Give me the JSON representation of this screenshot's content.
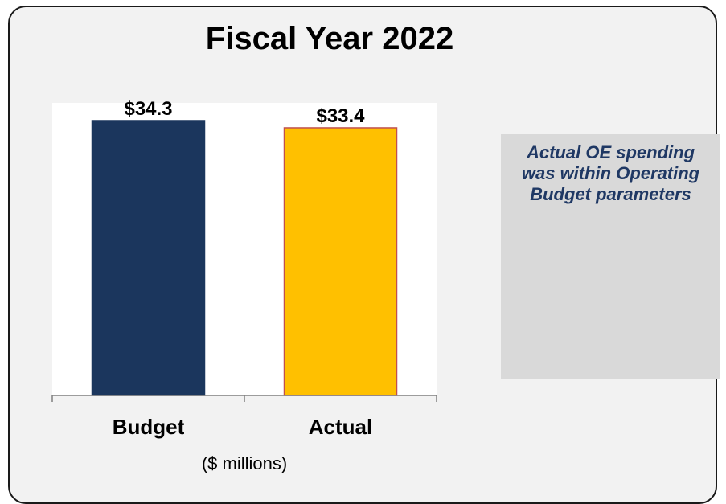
{
  "chart_data": {
    "type": "bar",
    "title": "Fiscal Year 2022",
    "categories": [
      "Budget",
      "Actual"
    ],
    "values": [
      34.3,
      33.4
    ],
    "data_labels": [
      "$34.3",
      "$33.4"
    ],
    "colors": [
      "#1b365d",
      "#ffc000"
    ],
    "bar_borders": [
      "#1b365d",
      "#c0504d"
    ],
    "xlabel": "($ millions)",
    "ylabel": "",
    "ylim": [
      0,
      34.3
    ],
    "grid": false
  },
  "note": {
    "text": "Actual OE spending was within Operating Budget parameters"
  }
}
